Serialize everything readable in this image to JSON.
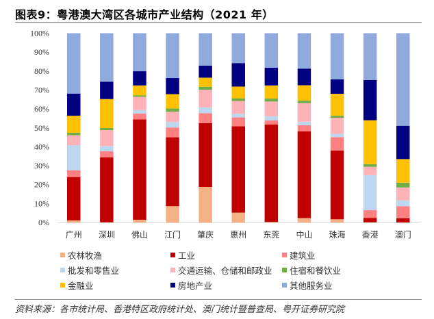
{
  "title": "图表9：粤港澳大湾区各城市产业结构（2021 年）",
  "source": "资料来源：各市统计局、香港特区政府统计处、澳门统计暨普查局、粤开证券研究院",
  "chart_data": {
    "type": "bar",
    "stacked": true,
    "title": "粤港澳大湾区各城市产业结构（2021 年）",
    "xlabel": "",
    "ylabel": "",
    "ylim": [
      0,
      100
    ],
    "yticks": [
      "0%",
      "10%",
      "20%",
      "30%",
      "40%",
      "50%",
      "60%",
      "70%",
      "80%",
      "90%",
      "100%"
    ],
    "grid": false,
    "legend_position": "bottom",
    "categories": [
      "广州",
      "深圳",
      "佛山",
      "江门",
      "肇庆",
      "惠州",
      "东莞",
      "中山",
      "珠海",
      "香港",
      "澳门"
    ],
    "series": [
      {
        "name": "农林牧渔",
        "color": "#F4B183",
        "values": [
          1.1,
          0.1,
          1.4,
          8.6,
          18.8,
          5.2,
          0.3,
          2.3,
          1.7,
          0.1,
          0.0
        ]
      },
      {
        "name": "工业",
        "color": "#C00000",
        "values": [
          22.9,
          34.3,
          53.1,
          36.4,
          33.7,
          45.6,
          51.5,
          45.8,
          36.3,
          2.3,
          2.2
        ]
      },
      {
        "name": "建筑业",
        "color": "#FF8080",
        "values": [
          3.6,
          3.2,
          3.1,
          5.2,
          5.2,
          4.7,
          2.1,
          3.3,
          7.1,
          4.1,
          6.4
        ]
      },
      {
        "name": "批发和零售业",
        "color": "#BDD7EE",
        "values": [
          13.2,
          2.8,
          1.8,
          2.9,
          3.1,
          1.9,
          2.2,
          1.8,
          1.7,
          18.5,
          3.1
        ]
      },
      {
        "name": "交通运输、仓储和邮政业",
        "color": "#FFB3B8",
        "values": [
          5.3,
          8.4,
          7.0,
          5.4,
          9.3,
          6.8,
          7.8,
          9.9,
          8.5,
          4.4,
          6.8
        ]
      },
      {
        "name": "住宿和餐饮业",
        "color": "#70AD47",
        "values": [
          1.3,
          1.1,
          0.8,
          1.7,
          1.6,
          1.4,
          1.6,
          1.3,
          1.1,
          1.4,
          2.5
        ]
      },
      {
        "name": "金融业",
        "color": "#FFC000",
        "values": [
          9.0,
          15.3,
          5.2,
          7.6,
          4.8,
          6.2,
          6.9,
          8.1,
          11.6,
          23.2,
          12.5
        ]
      },
      {
        "name": "房地产业",
        "color": "#000080",
        "values": [
          11.7,
          9.2,
          7.5,
          8.5,
          6.4,
          12.4,
          9.4,
          8.8,
          7.6,
          21.3,
          17.6
        ]
      },
      {
        "name": "其他服务业",
        "color": "#8FAADC",
        "values": [
          31.9,
          25.6,
          20.1,
          23.7,
          17.1,
          15.8,
          18.2,
          18.7,
          24.4,
          24.7,
          48.9
        ]
      }
    ]
  }
}
